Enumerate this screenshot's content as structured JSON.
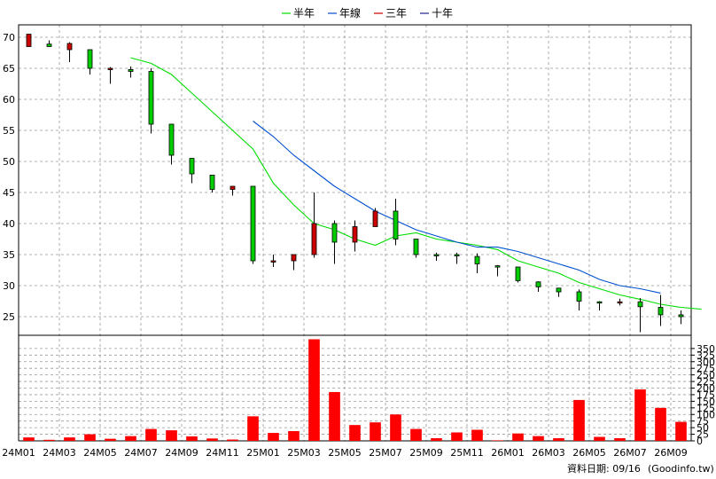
{
  "chart_data": {
    "type": "candlestick",
    "x_labels": [
      "24M01",
      "24M03",
      "24M05",
      "24M07",
      "24M09",
      "24M11",
      "25M01",
      "25M03",
      "25M05",
      "25M07",
      "25M09",
      "25M11",
      "26M01",
      "26M03",
      "26M05",
      "26M07",
      "26M09"
    ],
    "legend": [
      {
        "name": "半年",
        "color": "#00dd00"
      },
      {
        "name": "年線",
        "color": "#0050d0"
      },
      {
        "name": "三年",
        "color": "#cc0000"
      },
      {
        "name": "十年",
        "color": "#202090"
      }
    ],
    "price_axis": {
      "min": 22,
      "max": 72,
      "ticks": [
        25,
        30,
        35,
        40,
        45,
        50,
        55,
        60,
        65,
        70
      ]
    },
    "volume_axis": {
      "min": 0,
      "max": 400,
      "ticks": [
        0,
        25,
        50,
        75,
        100,
        125,
        150,
        175,
        200,
        225,
        250,
        275,
        300,
        325,
        350
      ]
    },
    "candles": [
      {
        "o": 68.5,
        "h": 70.5,
        "l": 68.5,
        "c": 70.5
      },
      {
        "o": 68.9,
        "h": 69.5,
        "l": 68.5,
        "c": 68.5
      },
      {
        "o": 68.0,
        "h": 69.2,
        "l": 66.0,
        "c": 69.0
      },
      {
        "o": 68.0,
        "h": 68.0,
        "l": 64.0,
        "c": 65.0
      },
      {
        "o": 65.0,
        "h": 65.2,
        "l": 62.5,
        "c": 65.0
      },
      {
        "o": 64.8,
        "h": 65.3,
        "l": 63.5,
        "c": 64.5
      },
      {
        "o": 64.5,
        "h": 65.0,
        "l": 54.5,
        "c": 56.0
      },
      {
        "o": 56.0,
        "h": 56.0,
        "l": 49.5,
        "c": 51.0
      },
      {
        "o": 50.5,
        "h": 50.5,
        "l": 46.5,
        "c": 48.0
      },
      {
        "o": 47.8,
        "h": 47.8,
        "l": 45.0,
        "c": 45.5
      },
      {
        "o": 45.5,
        "h": 46.0,
        "l": 44.5,
        "c": 46.0
      },
      {
        "o": 46.0,
        "h": 46.0,
        "l": 33.5,
        "c": 34.0
      },
      {
        "o": 34.0,
        "h": 35.0,
        "l": 33.0,
        "c": 34.0
      },
      {
        "o": 34.0,
        "h": 35.0,
        "l": 32.5,
        "c": 35.0
      },
      {
        "o": 35.0,
        "h": 45.0,
        "l": 34.5,
        "c": 40.0
      },
      {
        "o": 40.0,
        "h": 40.5,
        "l": 33.5,
        "c": 37.0
      },
      {
        "o": 37.0,
        "h": 40.5,
        "l": 35.5,
        "c": 39.5
      },
      {
        "o": 39.5,
        "h": 42.5,
        "l": 39.5,
        "c": 42.0
      },
      {
        "o": 42.0,
        "h": 44.0,
        "l": 36.5,
        "c": 37.5
      },
      {
        "o": 37.5,
        "h": 37.5,
        "l": 34.5,
        "c": 35.0
      },
      {
        "o": 35.0,
        "h": 35.3,
        "l": 34.0,
        "c": 34.8
      },
      {
        "o": 35.0,
        "h": 35.3,
        "l": 33.5,
        "c": 34.8
      },
      {
        "o": 34.7,
        "h": 35.2,
        "l": 32.0,
        "c": 33.5
      },
      {
        "o": 33.2,
        "h": 33.3,
        "l": 31.5,
        "c": 33.0
      },
      {
        "o": 33.0,
        "h": 33.0,
        "l": 30.5,
        "c": 30.8
      },
      {
        "o": 30.6,
        "h": 30.7,
        "l": 29.0,
        "c": 29.8
      },
      {
        "o": 29.6,
        "h": 29.6,
        "l": 28.2,
        "c": 29.0
      },
      {
        "o": 29.0,
        "h": 29.4,
        "l": 26.0,
        "c": 27.5
      },
      {
        "o": 27.4,
        "h": 27.5,
        "l": 26.0,
        "c": 27.3
      },
      {
        "o": 27.3,
        "h": 27.9,
        "l": 26.8,
        "c": 27.4
      },
      {
        "o": 27.4,
        "h": 28.0,
        "l": 22.5,
        "c": 26.6
      },
      {
        "o": 26.5,
        "h": 28.5,
        "l": 23.5,
        "c": 25.3
      },
      {
        "o": 25.3,
        "h": 26.0,
        "l": 23.8,
        "c": 25.0
      }
    ],
    "volumes": [
      13,
      4,
      13,
      25,
      8,
      18,
      45,
      40,
      17,
      9,
      5,
      93,
      30,
      37,
      385,
      185,
      60,
      70,
      100,
      45,
      10,
      32,
      42,
      2,
      28,
      18,
      10,
      155,
      15,
      10,
      195,
      125,
      72
    ],
    "series": [
      {
        "name": "半年",
        "start_index": 5,
        "values": [
          66.7,
          65.8,
          64.0,
          61.0,
          58.0,
          55.0,
          52.0,
          46.5,
          43.0,
          40.0,
          39.0,
          37.5,
          36.5,
          38.0,
          38.5,
          37.5,
          37.0,
          36.5,
          35.8,
          34.0,
          33.0,
          32.0,
          30.5,
          29.5,
          28.5,
          27.8,
          27.0,
          26.5,
          26.2
        ]
      },
      {
        "name": "年線",
        "start_index": 11,
        "values": [
          56.5,
          54.0,
          51.0,
          48.5,
          46.0,
          44.0,
          42.0,
          40.5,
          39.0,
          38.0,
          37.0,
          36.2,
          36.2,
          35.5,
          34.5,
          33.5,
          32.5,
          31.0,
          30.0,
          29.5,
          28.8
        ]
      }
    ]
  },
  "footer": {
    "date_text": "資料日期: 09/16",
    "source": "(Goodinfo.tw)"
  }
}
